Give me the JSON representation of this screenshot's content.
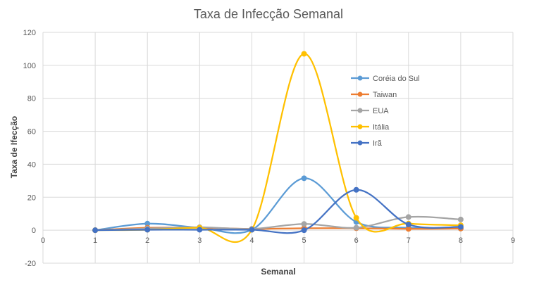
{
  "chart_data": {
    "type": "line",
    "title": "Taxa de Infecção Semanal",
    "xlabel": "Semanal",
    "ylabel": "Taxa de Ifecção",
    "x_ticks": [
      0,
      1,
      2,
      3,
      4,
      5,
      6,
      7,
      8,
      9
    ],
    "y_ticks": [
      -20,
      0,
      20,
      40,
      60,
      80,
      100,
      120
    ],
    "xlim": [
      0,
      9
    ],
    "ylim": [
      -20,
      120
    ],
    "grid": true,
    "legend_position": "right-inside",
    "x": [
      1,
      2,
      3,
      4,
      5,
      6,
      7,
      8
    ],
    "series": [
      {
        "name": "Coréia do Sul",
        "color": "#5b9bd5",
        "values": [
          0,
          4,
          1.5,
          0.3,
          31.5,
          5,
          1.5,
          1
        ]
      },
      {
        "name": "Taiwan",
        "color": "#ed7d31",
        "values": [
          0,
          1.5,
          1.5,
          0.8,
          1.2,
          1.2,
          0.8,
          1
        ]
      },
      {
        "name": "EUA",
        "color": "#a5a5a5",
        "values": [
          0,
          1,
          1.8,
          0.8,
          3.8,
          1.5,
          8,
          6.5
        ]
      },
      {
        "name": "Itália",
        "color": "#ffc000",
        "values": [
          0,
          0.3,
          1.5,
          0.3,
          107,
          7.5,
          4,
          3
        ]
      },
      {
        "name": "Irã",
        "color": "#4472c4",
        "values": [
          0,
          0.3,
          0.3,
          0.3,
          0,
          24.5,
          3.5,
          2
        ]
      }
    ]
  }
}
